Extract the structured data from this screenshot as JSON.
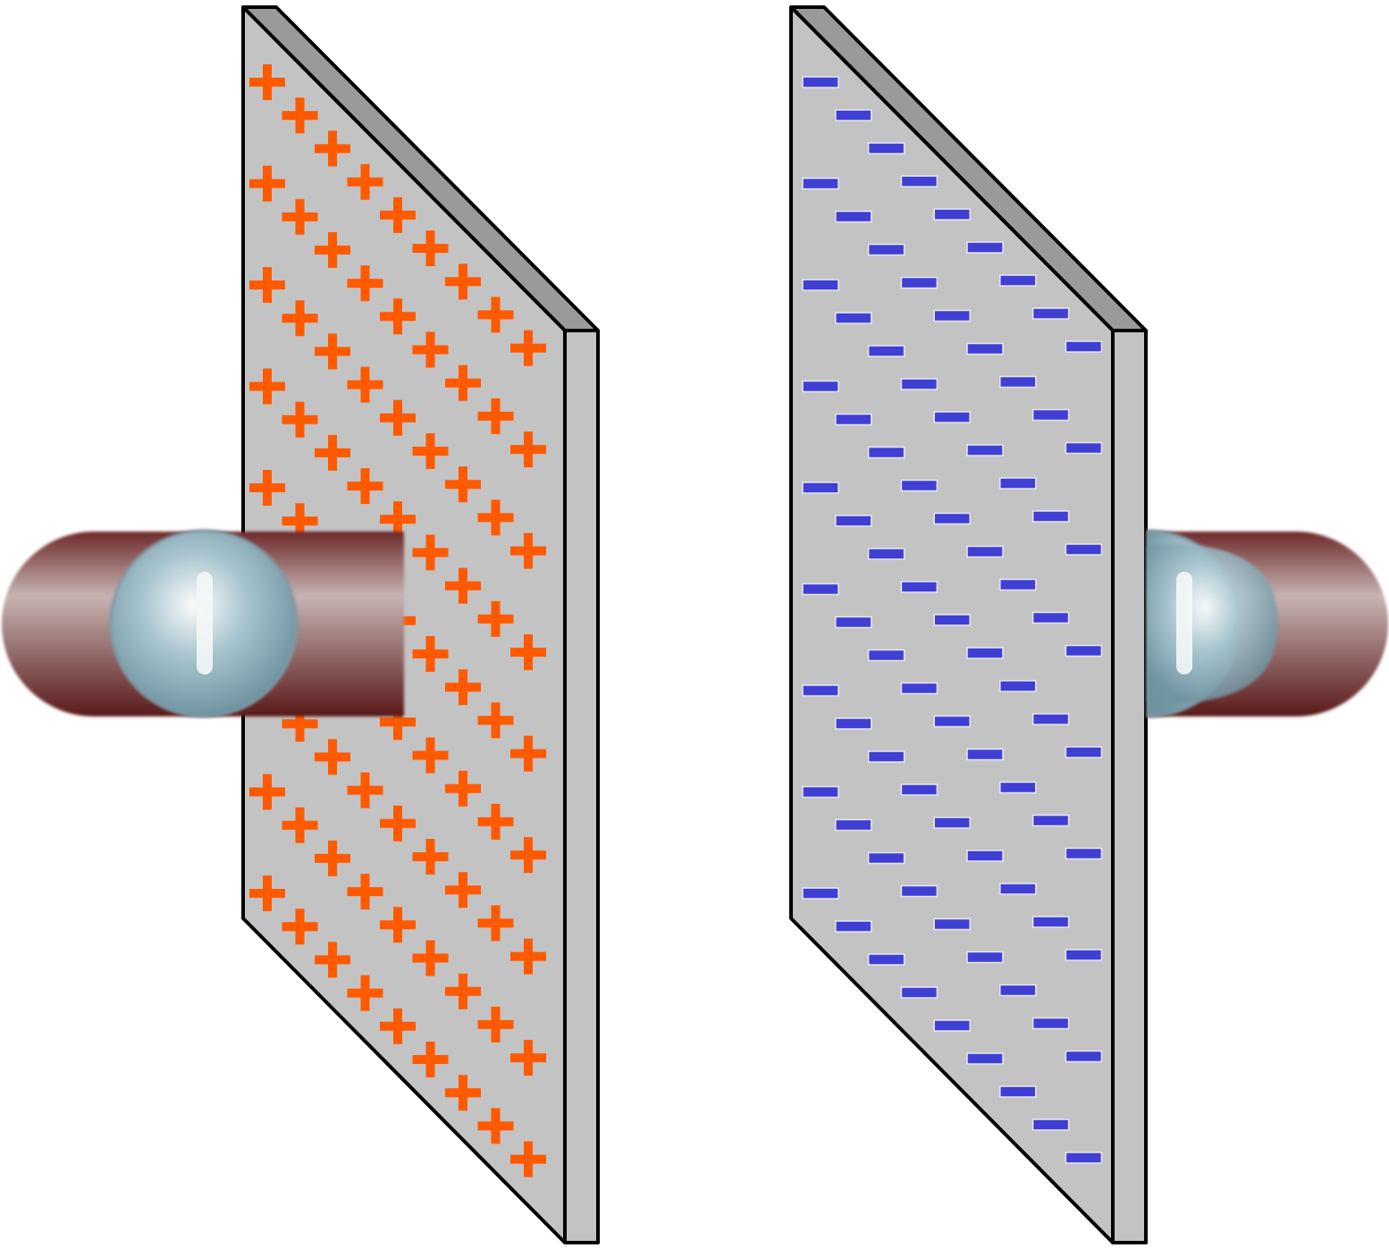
{
  "diagram": {
    "description_type": "parallel-plate-capacitor",
    "left_plate": {
      "charge_symbol": "+",
      "charge_sign": "positive",
      "charge_color": "#ff5a00",
      "face_color": "#c3c3c3",
      "edge_color": "#9a9a9a",
      "outline_color": "#000000"
    },
    "right_plate": {
      "charge_symbol": "−",
      "charge_sign": "negative",
      "charge_color": "#3f3fd4",
      "face_color": "#c3c3c3",
      "edge_color": "#9a9a9a",
      "outline_color": "#000000"
    },
    "wires": {
      "count": 2,
      "color_light": "#c7b3b3",
      "color_dark": "#5a1a1a",
      "connector_color": "#a9c6d0"
    }
  }
}
